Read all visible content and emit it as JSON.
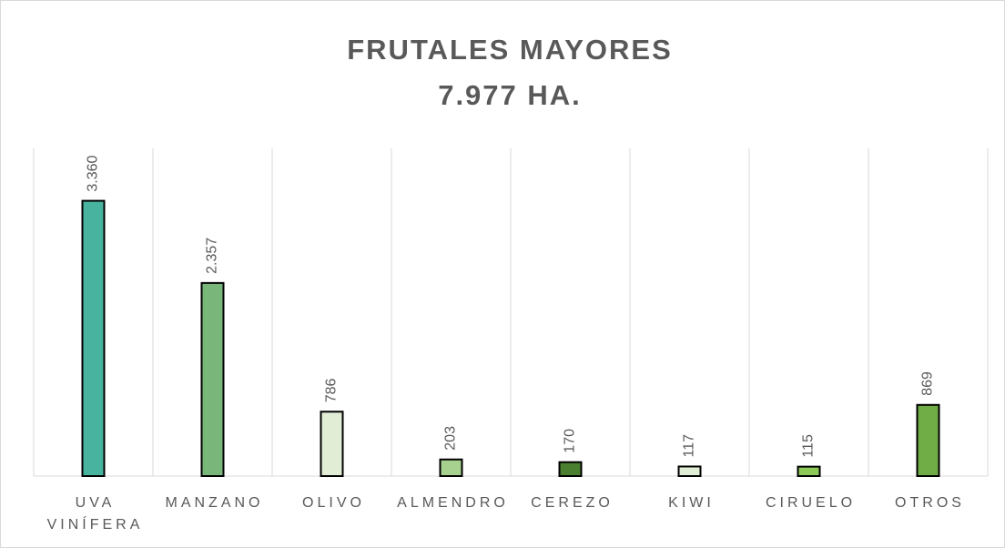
{
  "chart_data": {
    "type": "bar",
    "title": "FRUTALES MAYORES",
    "subtitle": "7.977 HA.",
    "categories": [
      "UVA VINÍFERA",
      "MANZANO",
      "OLIVO",
      "ALMENDRO",
      "CEREZO",
      "KIWI",
      "CIRUELO",
      "OTROS"
    ],
    "values": [
      3360,
      2357,
      786,
      203,
      170,
      117,
      115,
      869
    ],
    "value_labels": [
      "3.360",
      "2.357",
      "786",
      "203",
      "170",
      "117",
      "115",
      "869"
    ],
    "colors": [
      "#48b39f",
      "#78b67a",
      "#e1eed5",
      "#a7d18e",
      "#4a7f2f",
      "#dfeed4",
      "#8cc957",
      "#70ad47"
    ],
    "ylim": [
      0,
      4000
    ]
  }
}
